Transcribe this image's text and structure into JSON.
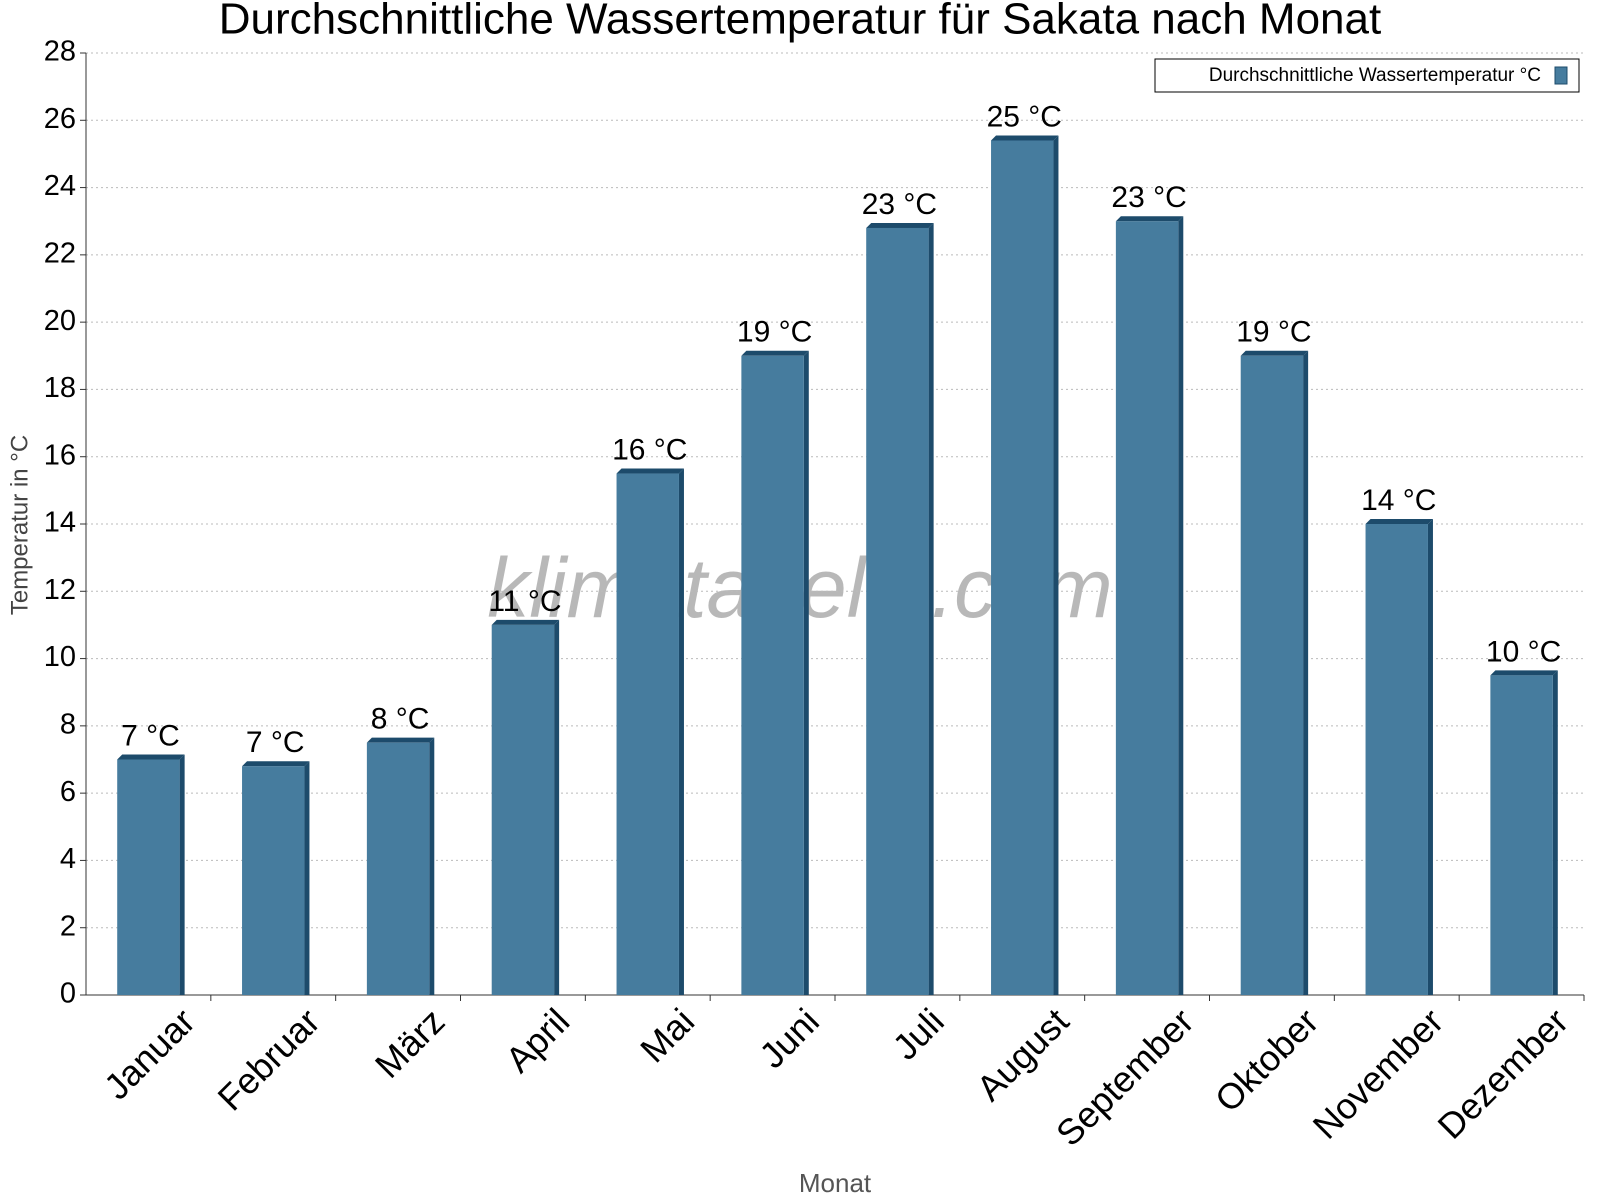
{
  "chart_data": {
    "type": "bar",
    "title": "Durchschnittliche Wassertemperatur für Sakata nach Monat",
    "x_label": "Monat",
    "y_label": "Temperatur in °C",
    "watermark": "klimatabelle.com",
    "categories": [
      "Januar",
      "Februar",
      "März",
      "April",
      "Mai",
      "Juni",
      "Juli",
      "August",
      "September",
      "Oktober",
      "November",
      "Dezember"
    ],
    "series": [
      {
        "name": "Durchschnittliche Wassertemperatur °C",
        "color": "#467c9e",
        "values": [
          7.0,
          6.8,
          7.5,
          11.0,
          15.5,
          19.0,
          22.8,
          25.4,
          23.0,
          19.0,
          14.0,
          9.5
        ],
        "value_labels": [
          "7 °C",
          "7 °C",
          "8 °C",
          "11 °C",
          "16 °C",
          "19 °C",
          "23 °C",
          "25 °C",
          "23 °C",
          "19 °C",
          "14 °C",
          "10 °C"
        ]
      }
    ],
    "ylim": [
      0,
      28
    ],
    "yticks": [
      0,
      2,
      4,
      6,
      8,
      10,
      12,
      14,
      16,
      18,
      20,
      22,
      24,
      26,
      28
    ],
    "grid": true,
    "legend": "top-right"
  }
}
